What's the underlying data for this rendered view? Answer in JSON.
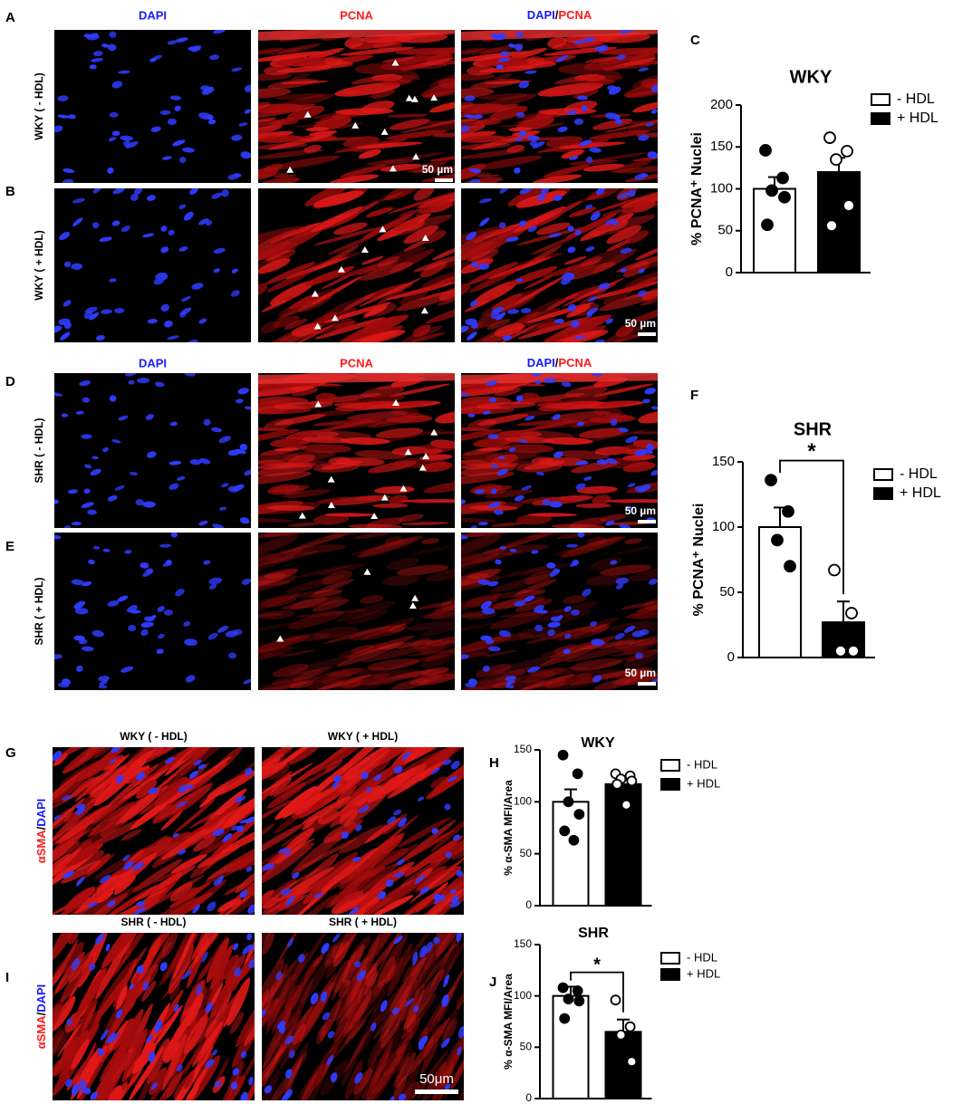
{
  "panel_labels": [
    "A",
    "B",
    "C",
    "D",
    "E",
    "F",
    "G",
    "H",
    "I",
    "J"
  ],
  "pcna_images": {
    "stain_dapi": "DAPI",
    "stain_pcna": "PCNA",
    "separator": "/",
    "rows": [
      "WKY ( - HDL)",
      "WKY ( + HDL)",
      "SHR ( - HDL)",
      "SHR ( + HDL)"
    ],
    "scale_bar": "50 µm"
  },
  "sma_images": {
    "titles": [
      "WKY ( - HDL)",
      "WKY ( + HDL)",
      "SHR ( - HDL)",
      "SHR ( + HDL)"
    ],
    "stain_sma": "αSMA",
    "separator": "/",
    "stain_dapi": "DAPI",
    "scale_bar": "50μm"
  },
  "chart_data": [
    {
      "type": "bar",
      "title": "WKY",
      "y_label": "% PCNA⁺ Nuclei",
      "ylim": [
        0,
        200
      ],
      "yticks": [
        0,
        50,
        100,
        150,
        200
      ],
      "legend": "upper right",
      "series": [
        {
          "name": "- HDL",
          "color": "#ffffff",
          "values": [
            100
          ],
          "error": 14,
          "points": [
            146,
            113,
            98,
            90,
            57
          ],
          "point_color": "#000000"
        },
        {
          "name": "+ HDL",
          "color": "#000000",
          "values": [
            120
          ],
          "error": 17,
          "points": [
            161,
            145,
            135,
            80,
            56
          ],
          "point_color": "#ffffff"
        }
      ]
    },
    {
      "type": "bar",
      "title": "SHR",
      "significance": "*",
      "y_label": "% PCNA⁺ Nuclei",
      "ylim": [
        0,
        150
      ],
      "yticks": [
        0,
        50,
        100,
        150
      ],
      "legend": "upper right",
      "series": [
        {
          "name": "- HDL",
          "color": "#ffffff",
          "values": [
            100
          ],
          "error": 15,
          "points": [
            136,
            112,
            90,
            70
          ],
          "point_color": "#000000"
        },
        {
          "name": "+ HDL",
          "color": "#000000",
          "values": [
            27
          ],
          "error": 16,
          "points": [
            67,
            34,
            5,
            5
          ],
          "point_color": "#ffffff"
        }
      ]
    },
    {
      "type": "bar",
      "title": "WKY",
      "y_label": "% α-SMA MFI/Area",
      "ylim": [
        0,
        150
      ],
      "yticks": [
        0,
        50,
        100,
        150
      ],
      "legend": "upper right",
      "series": [
        {
          "name": "- HDL",
          "color": "#ffffff",
          "values": [
            100
          ],
          "error": 12,
          "points": [
            145,
            127,
            100,
            88,
            72,
            63
          ],
          "point_color": "#000000"
        },
        {
          "name": "+ HDL",
          "color": "#000000",
          "values": [
            117
          ],
          "error": 4,
          "points": [
            127,
            125,
            122,
            120,
            117,
            97
          ],
          "point_color": "#ffffff"
        }
      ]
    },
    {
      "type": "bar",
      "title": "SHR",
      "significance": "*",
      "y_label": "% α-SMA MFI/Area",
      "ylim": [
        0,
        150
      ],
      "yticks": [
        0,
        50,
        100,
        150
      ],
      "legend": "upper right",
      "series": [
        {
          "name": "- HDL",
          "color": "#ffffff",
          "values": [
            100
          ],
          "error": 9,
          "points": [
            108,
            105,
            97,
            95,
            78
          ],
          "point_color": "#000000"
        },
        {
          "name": "+ HDL",
          "color": "#000000",
          "values": [
            65
          ],
          "error": 12,
          "points": [
            96,
            70,
            62,
            36
          ],
          "point_color": "#ffffff"
        }
      ]
    }
  ]
}
